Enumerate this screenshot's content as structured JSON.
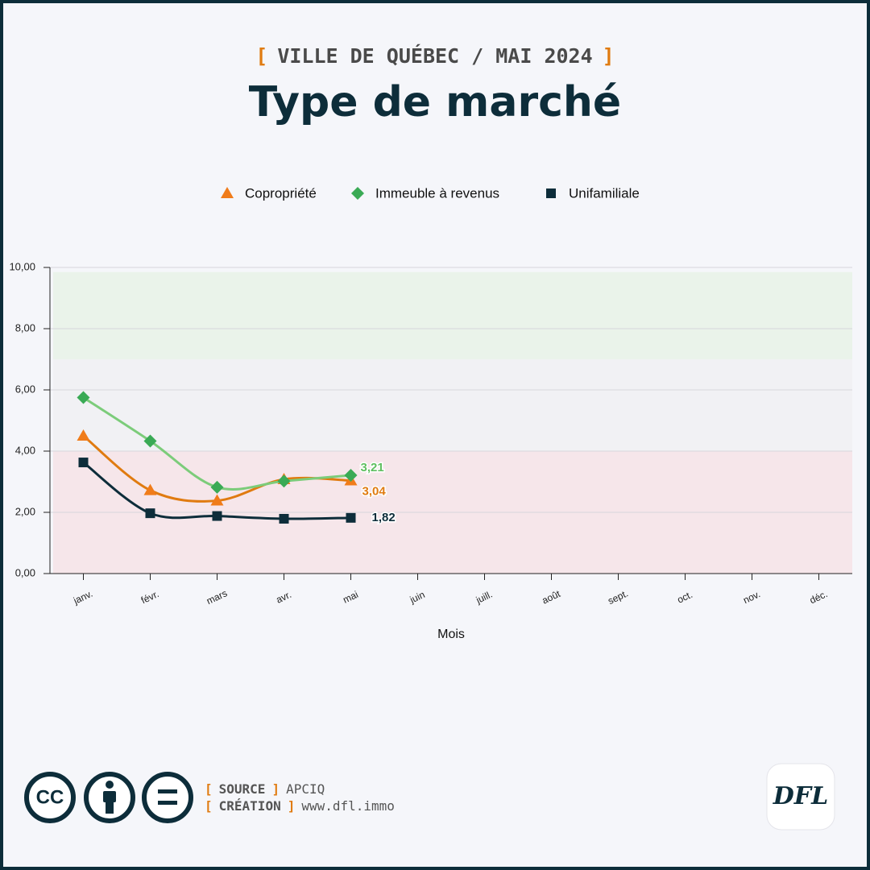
{
  "header": {
    "kicker": [
      "[",
      "VILLE DE QUÉBEC / MAI 2024",
      "]"
    ],
    "title": "Type de marché"
  },
  "chart_data": {
    "type": "line",
    "categories": [
      "janv.",
      "févr.",
      "mars",
      "avr.",
      "mai",
      "juin",
      "juill.",
      "août",
      "sept.",
      "oct.",
      "nov.",
      "déc."
    ],
    "series": [
      {
        "name": "Copropriété",
        "color": "#e07b10",
        "marker_color": "#f07c1a",
        "marker": "triangle",
        "values": [
          4.5,
          2.72,
          2.38,
          3.08,
          3.04,
          null,
          null,
          null,
          null,
          null,
          null,
          null
        ],
        "value_labels": [
          null,
          null,
          null,
          null,
          "3,04",
          null,
          null,
          null,
          null,
          null,
          null,
          null
        ]
      },
      {
        "name": "Immeuble à revenus",
        "color": "#7ccc7a",
        "marker_color": "#3aaa55",
        "marker": "diamond",
        "values": [
          5.75,
          4.33,
          2.82,
          3.02,
          3.21,
          null,
          null,
          null,
          null,
          null,
          null,
          null
        ],
        "value_labels": [
          null,
          null,
          null,
          null,
          "3,21",
          null,
          null,
          null,
          null,
          null,
          null,
          null
        ]
      },
      {
        "name": "Unifamiliale",
        "color": "#0d2d3a",
        "marker_color": "#0d2d3a",
        "marker": "square",
        "values": [
          3.63,
          1.97,
          1.88,
          1.79,
          1.82,
          null,
          null,
          null,
          null,
          null,
          null,
          null
        ],
        "value_labels": [
          null,
          null,
          null,
          null,
          "1,82",
          null,
          null,
          null,
          null,
          null,
          null,
          null
        ]
      }
    ],
    "zones": [
      {
        "from": 0,
        "to": 4,
        "color": "#f6e6ea"
      },
      {
        "from": 4,
        "to": 7,
        "color": "#f1f1f4"
      },
      {
        "from": 7,
        "to": 9.85,
        "color": "#eaf3ea"
      }
    ],
    "ylim": [
      0,
      10
    ],
    "yticks": [
      {
        "value": 0,
        "label": "0,00"
      },
      {
        "value": 2,
        "label": "2,00"
      },
      {
        "value": 4,
        "label": "4,00"
      },
      {
        "value": 6,
        "label": "6,00"
      },
      {
        "value": 8,
        "label": "8,00"
      },
      {
        "value": 10,
        "label": "10,00"
      }
    ],
    "x_label": "Mois",
    "grid": true
  },
  "footer": {
    "icons": "CC",
    "source": [
      "[",
      "SOURCE",
      "]",
      "APCIQ"
    ],
    "creation": [
      "[",
      "CRÉATION",
      "]",
      "www.dfl.immo"
    ],
    "logo": "DFL"
  }
}
